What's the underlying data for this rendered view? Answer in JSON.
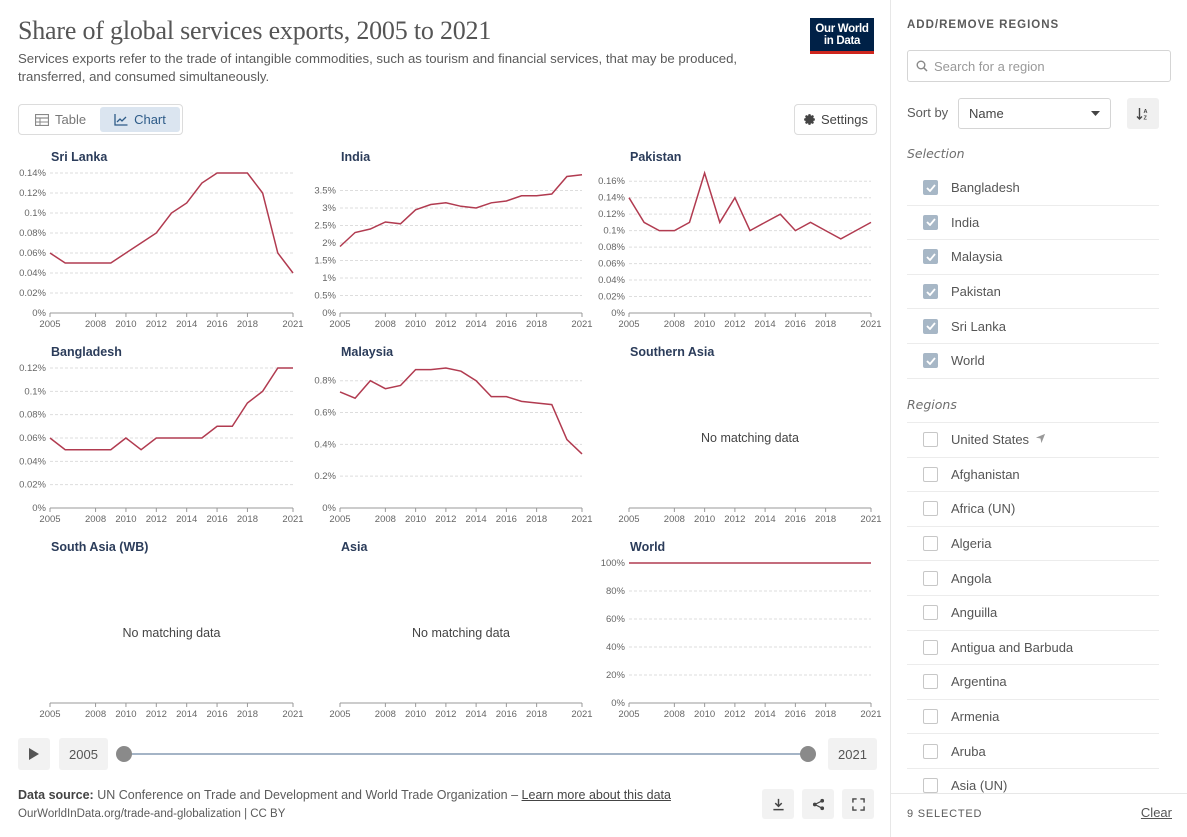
{
  "header": {
    "title": "Share of global services exports, 2005 to 2021",
    "subtitle": "Services exports refer to the trade of intangible commodities, such as tourism and financial services, that may be produced, transferred, and consumed simultaneously.",
    "logo_line1": "Our World",
    "logo_line2": "in Data"
  },
  "toolbar": {
    "tab_table": "Table",
    "tab_chart": "Chart",
    "settings_label": "Settings"
  },
  "timeline": {
    "start_year": "2005",
    "end_year": "2021",
    "start_fraction": 0,
    "end_fraction": 1
  },
  "footer": {
    "source_label": "Data source:",
    "source_text": "UN Conference on Trade and Development and World Trade Organization –",
    "learn_more": "Learn more about this data",
    "url_line": "OurWorldInData.org/trade-and-globalization | CC BY"
  },
  "sidebar": {
    "heading": "ADD/REMOVE REGIONS",
    "search_placeholder": "Search for a region",
    "sort_label": "Sort by",
    "sort_value": "Name",
    "selection_heading": "Selection",
    "selection": [
      "Bangladesh",
      "India",
      "Malaysia",
      "Pakistan",
      "Sri Lanka",
      "World"
    ],
    "regions_heading": "Regions",
    "regions": [
      "United States",
      "Afghanistan",
      "Africa (UN)",
      "Algeria",
      "Angola",
      "Anguilla",
      "Antigua and Barbuda",
      "Argentina",
      "Armenia",
      "Aruba",
      "Asia (UN)"
    ],
    "selected_count": "9 SELECTED",
    "clear_label": "Clear"
  },
  "colors": {
    "line": "#b13b50",
    "title_text": "#2b3c5a",
    "accent": "#002147",
    "logo_bar": "#ce261e"
  },
  "chart_data": [
    {
      "type": "line",
      "title": "Sri Lanka",
      "x": [
        2005,
        2006,
        2007,
        2008,
        2009,
        2010,
        2011,
        2012,
        2013,
        2014,
        2015,
        2016,
        2017,
        2018,
        2019,
        2020,
        2021
      ],
      "values": [
        0.06,
        0.05,
        0.05,
        0.05,
        0.05,
        0.06,
        0.07,
        0.08,
        0.1,
        0.11,
        0.13,
        0.14,
        0.14,
        0.14,
        0.12,
        0.06,
        0.04
      ],
      "yticks": [
        0,
        0.02,
        0.04,
        0.06,
        0.08,
        0.1,
        0.12,
        0.14
      ],
      "ytick_labels": [
        "0%",
        "0.02%",
        "0.04%",
        "0.06%",
        "0.08%",
        "0.1%",
        "0.12%",
        "0.14%"
      ],
      "ylim": [
        0,
        0.14
      ]
    },
    {
      "type": "line",
      "title": "India",
      "x": [
        2005,
        2006,
        2007,
        2008,
        2009,
        2010,
        2011,
        2012,
        2013,
        2014,
        2015,
        2016,
        2017,
        2018,
        2019,
        2020,
        2021
      ],
      "values": [
        1.9,
        2.3,
        2.4,
        2.6,
        2.55,
        2.95,
        3.1,
        3.15,
        3.05,
        3.0,
        3.15,
        3.2,
        3.35,
        3.35,
        3.4,
        3.9,
        3.95
      ],
      "yticks": [
        0,
        0.5,
        1,
        1.5,
        2,
        2.5,
        3,
        3.5
      ],
      "ytick_labels": [
        "0%",
        "0.5%",
        "1%",
        "1.5%",
        "2%",
        "2.5%",
        "3%",
        "3.5%"
      ],
      "ylim": [
        0,
        4
      ]
    },
    {
      "type": "line",
      "title": "Pakistan",
      "x": [
        2005,
        2006,
        2007,
        2008,
        2009,
        2010,
        2011,
        2012,
        2013,
        2014,
        2015,
        2016,
        2017,
        2018,
        2019,
        2020,
        2021
      ],
      "values": [
        0.14,
        0.11,
        0.1,
        0.1,
        0.11,
        0.17,
        0.11,
        0.14,
        0.1,
        0.11,
        0.12,
        0.1,
        0.11,
        0.1,
        0.09,
        0.1,
        0.11
      ],
      "yticks": [
        0,
        0.02,
        0.04,
        0.06,
        0.08,
        0.1,
        0.12,
        0.14,
        0.16
      ],
      "ytick_labels": [
        "0%",
        "0.02%",
        "0.04%",
        "0.06%",
        "0.08%",
        "0.1%",
        "0.12%",
        "0.14%",
        "0.16%"
      ],
      "ylim": [
        0,
        0.17
      ]
    },
    {
      "type": "line",
      "title": "Bangladesh",
      "x": [
        2005,
        2006,
        2007,
        2008,
        2009,
        2010,
        2011,
        2012,
        2013,
        2014,
        2015,
        2016,
        2017,
        2018,
        2019,
        2020,
        2021
      ],
      "values": [
        0.06,
        0.05,
        0.05,
        0.05,
        0.05,
        0.06,
        0.05,
        0.06,
        0.06,
        0.06,
        0.06,
        0.07,
        0.07,
        0.09,
        0.1,
        0.12,
        0.12
      ],
      "yticks": [
        0,
        0.02,
        0.04,
        0.06,
        0.08,
        0.1,
        0.12
      ],
      "ytick_labels": [
        "0%",
        "0.02%",
        "0.04%",
        "0.06%",
        "0.08%",
        "0.1%",
        "0.12%"
      ],
      "ylim": [
        0,
        0.12
      ]
    },
    {
      "type": "line",
      "title": "Malaysia",
      "x": [
        2005,
        2006,
        2007,
        2008,
        2009,
        2010,
        2011,
        2012,
        2013,
        2014,
        2015,
        2016,
        2017,
        2018,
        2019,
        2020,
        2021
      ],
      "values": [
        0.73,
        0.69,
        0.8,
        0.75,
        0.77,
        0.87,
        0.87,
        0.88,
        0.86,
        0.8,
        0.7,
        0.7,
        0.67,
        0.66,
        0.65,
        0.43,
        0.34
      ],
      "yticks": [
        0,
        0.2,
        0.4,
        0.6,
        0.8
      ],
      "ytick_labels": [
        "0%",
        "0.2%",
        "0.4%",
        "0.6%",
        "0.8%"
      ],
      "ylim": [
        0,
        0.88
      ]
    },
    {
      "type": "line",
      "title": "Southern Asia",
      "x": [],
      "values": [],
      "message": "No matching data"
    },
    {
      "type": "line",
      "title": "South Asia (WB)",
      "x": [],
      "values": [],
      "message": "No matching data"
    },
    {
      "type": "line",
      "title": "Asia",
      "x": [],
      "values": [],
      "message": "No matching data"
    },
    {
      "type": "line",
      "title": "World",
      "x": [
        2005,
        2021
      ],
      "values": [
        100,
        100
      ],
      "yticks": [
        0,
        20,
        40,
        60,
        80,
        100
      ],
      "ytick_labels": [
        "0%",
        "20%",
        "40%",
        "60%",
        "80%",
        "100%"
      ],
      "ylim": [
        0,
        100
      ]
    }
  ],
  "xtick_labels": [
    "2005",
    "2008",
    "2010",
    "2012",
    "2014",
    "2016",
    "2018",
    "2021"
  ],
  "xtick_values": [
    2005,
    2008,
    2010,
    2012,
    2014,
    2016,
    2018,
    2021
  ]
}
